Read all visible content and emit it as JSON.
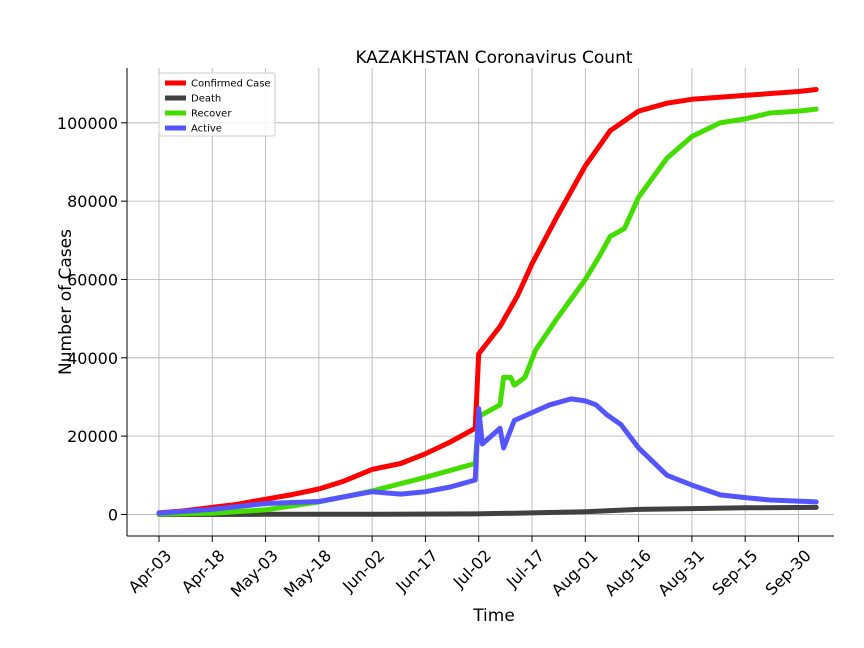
{
  "chart_data": {
    "type": "line",
    "title": "KAZAKHSTAN Coronavirus Count",
    "xlabel": "Time",
    "ylabel": "Number of Cases",
    "x_start": "2020-04-03",
    "x_end": "2020-10-05",
    "xlim": [
      "2020-03-25",
      "2020-10-10"
    ],
    "ylim": [
      -5500,
      114000
    ],
    "grid": true,
    "legend_position": "top-left",
    "x_ticks": [
      {
        "date": "2020-04-03",
        "label": "Apr-03"
      },
      {
        "date": "2020-04-18",
        "label": "Apr-18"
      },
      {
        "date": "2020-05-03",
        "label": "May-03"
      },
      {
        "date": "2020-05-18",
        "label": "May-18"
      },
      {
        "date": "2020-06-02",
        "label": "Jun-02"
      },
      {
        "date": "2020-06-17",
        "label": "Jun-17"
      },
      {
        "date": "2020-07-02",
        "label": "Jul-02"
      },
      {
        "date": "2020-07-17",
        "label": "Jul-17"
      },
      {
        "date": "2020-08-01",
        "label": "Aug-01"
      },
      {
        "date": "2020-08-16",
        "label": "Aug-16"
      },
      {
        "date": "2020-08-31",
        "label": "Aug-31"
      },
      {
        "date": "2020-09-15",
        "label": "Sep-15"
      },
      {
        "date": "2020-09-30",
        "label": "Sep-30"
      }
    ],
    "y_ticks": [
      0,
      20000,
      40000,
      60000,
      80000,
      100000
    ],
    "series": [
      {
        "name": "Confirmed Case",
        "color": "#ff0000",
        "points": [
          [
            "2020-04-03",
            400
          ],
          [
            "2020-04-10",
            900
          ],
          [
            "2020-04-18",
            1800
          ],
          [
            "2020-04-25",
            2600
          ],
          [
            "2020-05-03",
            3900
          ],
          [
            "2020-05-10",
            5000
          ],
          [
            "2020-05-18",
            6500
          ],
          [
            "2020-05-25",
            8500
          ],
          [
            "2020-06-02",
            11500
          ],
          [
            "2020-06-10",
            13000
          ],
          [
            "2020-06-17",
            15500
          ],
          [
            "2020-06-24",
            18500
          ],
          [
            "2020-07-01",
            22000
          ],
          [
            "2020-07-02",
            41000
          ],
          [
            "2020-07-08",
            48000
          ],
          [
            "2020-07-13",
            56000
          ],
          [
            "2020-07-17",
            64000
          ],
          [
            "2020-07-24",
            76000
          ],
          [
            "2020-08-01",
            89000
          ],
          [
            "2020-08-08",
            98000
          ],
          [
            "2020-08-16",
            103000
          ],
          [
            "2020-08-24",
            105000
          ],
          [
            "2020-08-31",
            106000
          ],
          [
            "2020-09-15",
            107000
          ],
          [
            "2020-09-30",
            108000
          ],
          [
            "2020-10-05",
            108500
          ]
        ]
      },
      {
        "name": "Death",
        "color": "#404040",
        "points": [
          [
            "2020-04-03",
            0
          ],
          [
            "2020-05-03",
            30
          ],
          [
            "2020-06-02",
            50
          ],
          [
            "2020-07-01",
            150
          ],
          [
            "2020-07-17",
            400
          ],
          [
            "2020-08-01",
            700
          ],
          [
            "2020-08-16",
            1300
          ],
          [
            "2020-08-31",
            1500
          ],
          [
            "2020-09-15",
            1700
          ],
          [
            "2020-10-05",
            1800
          ]
        ]
      },
      {
        "name": "Recover",
        "color": "#44dd00",
        "points": [
          [
            "2020-04-03",
            50
          ],
          [
            "2020-04-18",
            300
          ],
          [
            "2020-05-03",
            1200
          ],
          [
            "2020-05-18",
            3200
          ],
          [
            "2020-06-02",
            6000
          ],
          [
            "2020-06-17",
            9500
          ],
          [
            "2020-07-01",
            13000
          ],
          [
            "2020-07-02",
            25000
          ],
          [
            "2020-07-08",
            28000
          ],
          [
            "2020-07-09",
            35000
          ],
          [
            "2020-07-11",
            35000
          ],
          [
            "2020-07-12",
            33000
          ],
          [
            "2020-07-15",
            35000
          ],
          [
            "2020-07-18",
            42000
          ],
          [
            "2020-07-24",
            50000
          ],
          [
            "2020-08-01",
            60000
          ],
          [
            "2020-08-05",
            66000
          ],
          [
            "2020-08-08",
            71000
          ],
          [
            "2020-08-12",
            73000
          ],
          [
            "2020-08-16",
            81000
          ],
          [
            "2020-08-24",
            91000
          ],
          [
            "2020-08-31",
            96500
          ],
          [
            "2020-09-08",
            100000
          ],
          [
            "2020-09-15",
            101000
          ],
          [
            "2020-09-22",
            102500
          ],
          [
            "2020-09-30",
            103000
          ],
          [
            "2020-10-05",
            103500
          ]
        ]
      },
      {
        "name": "Active",
        "color": "#5555ff",
        "points": [
          [
            "2020-04-03",
            350
          ],
          [
            "2020-04-18",
            1300
          ],
          [
            "2020-05-03",
            2800
          ],
          [
            "2020-05-18",
            3300
          ],
          [
            "2020-06-02",
            5800
          ],
          [
            "2020-06-10",
            5200
          ],
          [
            "2020-06-17",
            5800
          ],
          [
            "2020-06-24",
            7000
          ],
          [
            "2020-07-01",
            8800
          ],
          [
            "2020-07-02",
            27000
          ],
          [
            "2020-07-03",
            18000
          ],
          [
            "2020-07-08",
            22000
          ],
          [
            "2020-07-09",
            17000
          ],
          [
            "2020-07-12",
            24000
          ],
          [
            "2020-07-17",
            26000
          ],
          [
            "2020-07-22",
            28000
          ],
          [
            "2020-07-28",
            29500
          ],
          [
            "2020-08-01",
            29000
          ],
          [
            "2020-08-04",
            28000
          ],
          [
            "2020-08-07",
            25500
          ],
          [
            "2020-08-11",
            23000
          ],
          [
            "2020-08-16",
            17000
          ],
          [
            "2020-08-24",
            10000
          ],
          [
            "2020-08-31",
            7500
          ],
          [
            "2020-09-08",
            5000
          ],
          [
            "2020-09-15",
            4300
          ],
          [
            "2020-09-22",
            3700
          ],
          [
            "2020-10-05",
            3200
          ]
        ]
      }
    ]
  }
}
